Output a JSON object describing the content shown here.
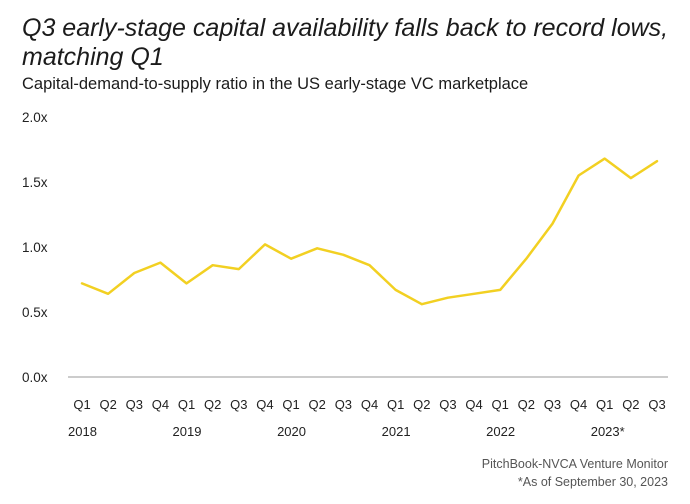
{
  "title": "Q3 early-stage capital availability falls back to record lows, matching Q1",
  "subtitle": "Capital-demand-to-supply ratio in the US early-stage VC marketplace",
  "source": "PitchBook-NVCA Venture Monitor",
  "note": "*As of September 30, 2023",
  "colors": {
    "line": "#F2D022",
    "axis": "#999999",
    "text": "#222222"
  },
  "chart_data": {
    "type": "line",
    "title": "Q3 early-stage capital availability falls back to record lows, matching Q1",
    "ylabel": "",
    "xlabel": "",
    "ylim": [
      0,
      2.0
    ],
    "yticks": [
      "0.0x",
      "0.5x",
      "1.0x",
      "1.5x",
      "2.0x"
    ],
    "grid": false,
    "categories": [
      "Q1",
      "Q2",
      "Q3",
      "Q4",
      "Q1",
      "Q2",
      "Q3",
      "Q4",
      "Q1",
      "Q2",
      "Q3",
      "Q4",
      "Q1",
      "Q2",
      "Q3",
      "Q4",
      "Q1",
      "Q2",
      "Q3",
      "Q4",
      "Q1",
      "Q2",
      "Q3"
    ],
    "years": [
      {
        "label": "2018",
        "start": 0
      },
      {
        "label": "2019",
        "start": 4
      },
      {
        "label": "2020",
        "start": 8
      },
      {
        "label": "2021",
        "start": 12
      },
      {
        "label": "2022",
        "start": 16
      },
      {
        "label": "2023*",
        "start": 20
      }
    ],
    "series": [
      {
        "values": [
          0.72,
          0.64,
          0.8,
          0.88,
          0.72,
          0.86,
          0.83,
          1.02,
          0.91,
          0.99,
          0.94,
          0.86,
          0.67,
          0.56,
          0.61,
          0.64,
          0.67,
          0.91,
          1.18,
          1.55,
          1.68,
          1.53,
          1.66
        ]
      }
    ]
  }
}
